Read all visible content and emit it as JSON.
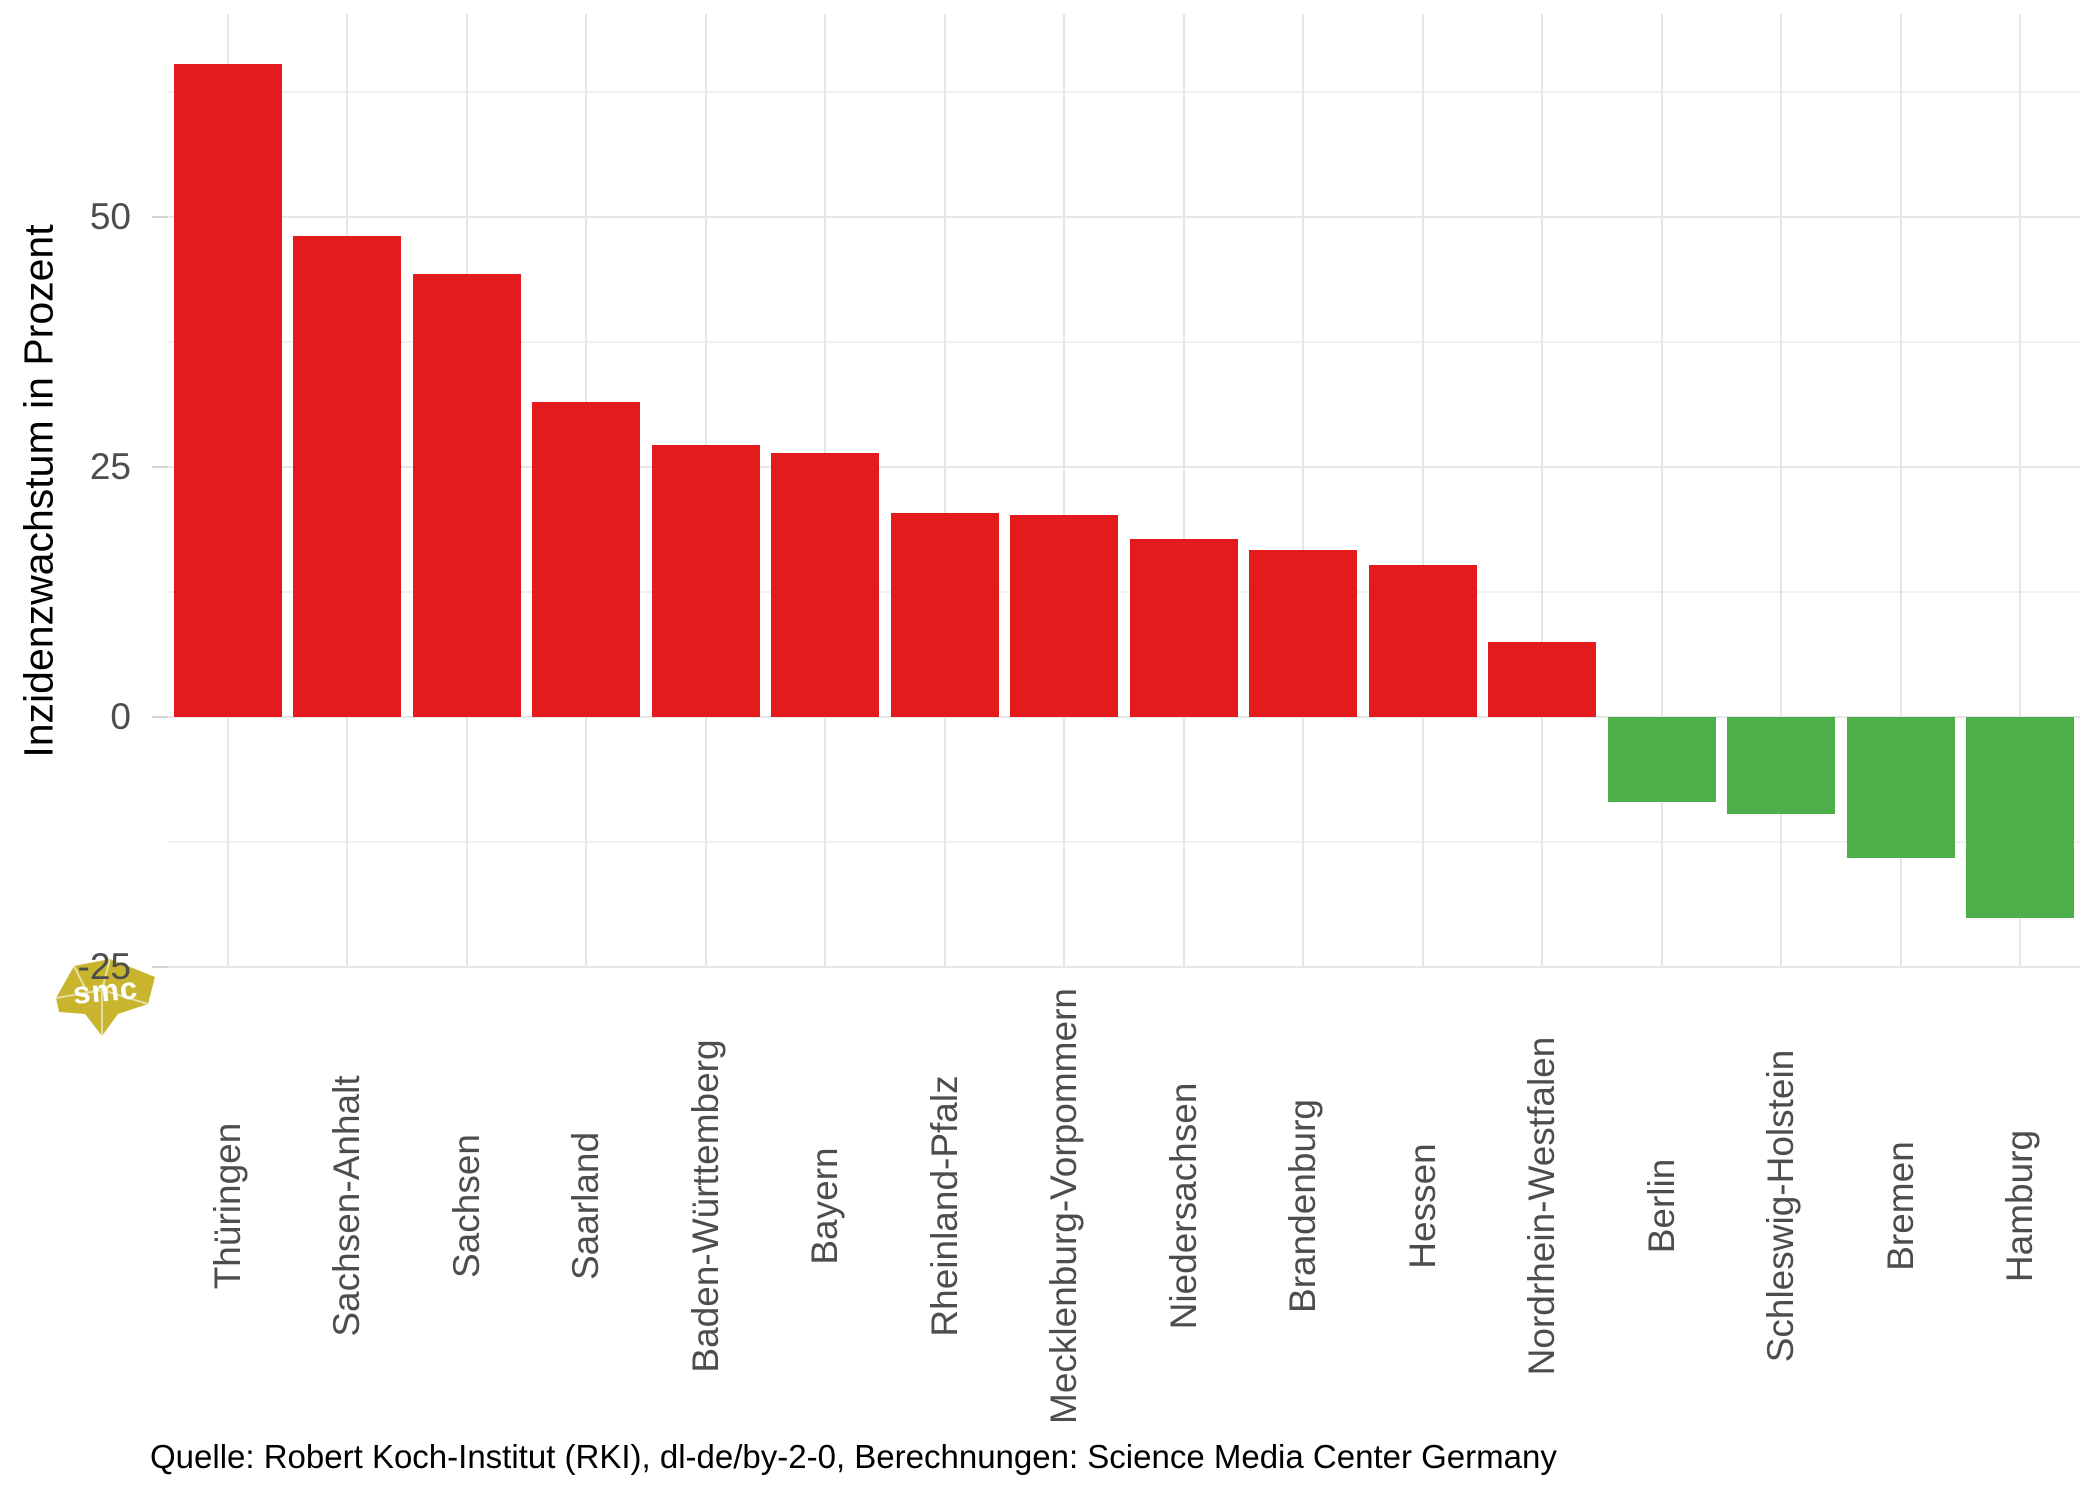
{
  "chart_data": {
    "type": "bar",
    "title": "",
    "ylabel": "Inzidenzwachstum in Prozent",
    "caption": "Quelle: Robert Koch-Institut (RKI), dl-de/by-2-0, Berechnungen: Science Media Center Germany",
    "categories": [
      "Thüringen",
      "Sachsen-Anhalt",
      "Sachsen",
      "Saarland",
      "Baden-Württemberg",
      "Bayern",
      "Rheinland-Pfalz",
      "Mecklenburg-Vorpommern",
      "Niedersachsen",
      "Brandenburg",
      "Hessen",
      "Nordrhein-Westfalen",
      "Berlin",
      "Schleswig-Holstein",
      "Bremen",
      "Hamburg"
    ],
    "values": [
      65.3,
      48.1,
      44.3,
      31.5,
      27.2,
      26.4,
      20.4,
      20.2,
      17.8,
      16.7,
      15.2,
      7.5,
      -8.5,
      -9.7,
      -14.1,
      -20.1
    ],
    "yticks": [
      50,
      25,
      0,
      -25
    ],
    "ytick_labels": [
      "50",
      "25",
      "0",
      "-25"
    ],
    "yticks_minor": [
      62.5,
      37.5,
      12.5,
      -12.5
    ],
    "ylim": [
      -25.1,
      70.4
    ],
    "grid": true,
    "legend": false,
    "colors": {
      "positive_bar": "#E41A1C",
      "negative_bar": "#4DAF4A",
      "axis_text": "#4D4D4D",
      "title_text": "#000000",
      "grid_major": "#E6E6E6",
      "grid_minor": "#F0F0F0",
      "tick_mark": "#D4D4D4",
      "watermark_gold": "#C9B42E"
    }
  },
  "watermark": {
    "text": "smc"
  }
}
